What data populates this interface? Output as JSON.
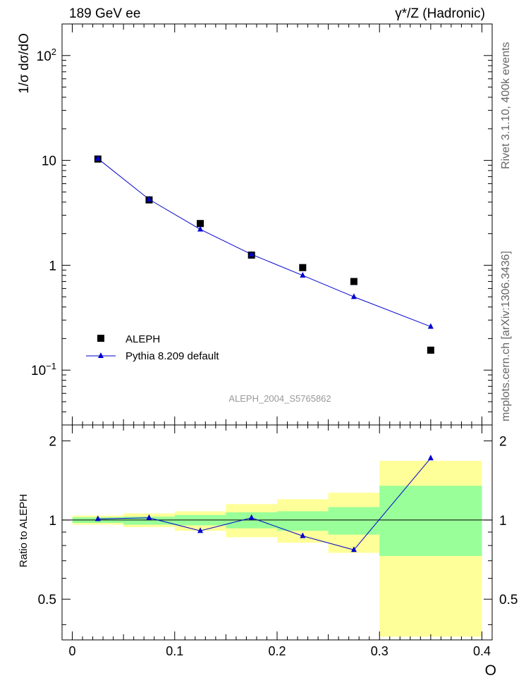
{
  "header": {
    "left": "189 GeV ee",
    "right": "γ*/Z (Hadronic)"
  },
  "side_labels": {
    "top": "Rivet 3.1.10,  400k events",
    "bottom": "mcplots.cern.ch [arXiv:1306.3436]"
  },
  "watermark": "ALEPH_2004_S5765862",
  "colors": {
    "data": "#000000",
    "mc": "#0000cc",
    "band_inner": "#99ff99",
    "band_outer": "#ffff99"
  },
  "chart_data": [
    {
      "type": "scatter",
      "ylabel": "1/σ  dσ/dO",
      "yscale": "log",
      "xlim": [
        -0.01,
        0.41
      ],
      "ylim": [
        0.03,
        200
      ],
      "y_tick_labels": [
        {
          "value": 100,
          "base": "10",
          "exp": "2"
        },
        {
          "value": 10,
          "base": "10",
          "exp": ""
        },
        {
          "value": 1,
          "base": "1",
          "exp": ""
        },
        {
          "value": 0.1,
          "base": "10",
          "exp": "−1"
        }
      ],
      "legend_placement": "bottom-left",
      "series": [
        {
          "name": "ALEPH",
          "marker": "square",
          "points": [
            {
              "x": 0.025,
              "y": 10.3
            },
            {
              "x": 0.075,
              "y": 4.2
            },
            {
              "x": 0.125,
              "y": 2.5
            },
            {
              "x": 0.175,
              "y": 1.25
            },
            {
              "x": 0.225,
              "y": 0.95
            },
            {
              "x": 0.275,
              "y": 0.7
            },
            {
              "x": 0.35,
              "y": 0.155
            }
          ]
        },
        {
          "name": "Pythia 8.209 default",
          "marker": "triangle",
          "points": [
            {
              "x": 0.025,
              "y": 10.4
            },
            {
              "x": 0.075,
              "y": 4.25
            },
            {
              "x": 0.125,
              "y": 2.2
            },
            {
              "x": 0.175,
              "y": 1.27
            },
            {
              "x": 0.225,
              "y": 0.8
            },
            {
              "x": 0.275,
              "y": 0.5
            },
            {
              "x": 0.35,
              "y": 0.26
            }
          ]
        }
      ]
    },
    {
      "type": "line",
      "ylabel": "Ratio to ALEPH",
      "xlabel": "O",
      "xlim": [
        -0.01,
        0.41
      ],
      "ylim": [
        0.35,
        2.3
      ],
      "x_ticks": [
        "0",
        "0.1",
        "0.2",
        "0.3",
        "0.4"
      ],
      "y_ticks": [
        "0.5",
        "1",
        "2"
      ],
      "bands": [
        {
          "x0": 0.0,
          "x1": 0.05,
          "inner": [
            0.975,
            1.025
          ],
          "outer": [
            0.96,
            1.04
          ]
        },
        {
          "x0": 0.05,
          "x1": 0.1,
          "inner": [
            0.96,
            1.03
          ],
          "outer": [
            0.94,
            1.06
          ]
        },
        {
          "x0": 0.1,
          "x1": 0.15,
          "inner": [
            0.955,
            1.045
          ],
          "outer": [
            0.91,
            1.08
          ]
        },
        {
          "x0": 0.15,
          "x1": 0.2,
          "inner": [
            0.93,
            1.07
          ],
          "outer": [
            0.86,
            1.15
          ]
        },
        {
          "x0": 0.2,
          "x1": 0.25,
          "inner": [
            0.91,
            1.08
          ],
          "outer": [
            0.82,
            1.2
          ]
        },
        {
          "x0": 0.25,
          "x1": 0.3,
          "inner": [
            0.88,
            1.12
          ],
          "outer": [
            0.75,
            1.27
          ]
        },
        {
          "x0": 0.3,
          "x1": 0.4,
          "inner": [
            0.73,
            1.35
          ],
          "outer": [
            0.36,
            1.68
          ]
        }
      ],
      "series": [
        {
          "name": "Pythia 8.209 default",
          "points": [
            {
              "x": 0.025,
              "y": 1.01
            },
            {
              "x": 0.075,
              "y": 1.02
            },
            {
              "x": 0.125,
              "y": 0.91
            },
            {
              "x": 0.175,
              "y": 1.02
            },
            {
              "x": 0.225,
              "y": 0.87
            },
            {
              "x": 0.275,
              "y": 0.77
            },
            {
              "x": 0.35,
              "y": 1.72
            }
          ]
        }
      ]
    }
  ]
}
